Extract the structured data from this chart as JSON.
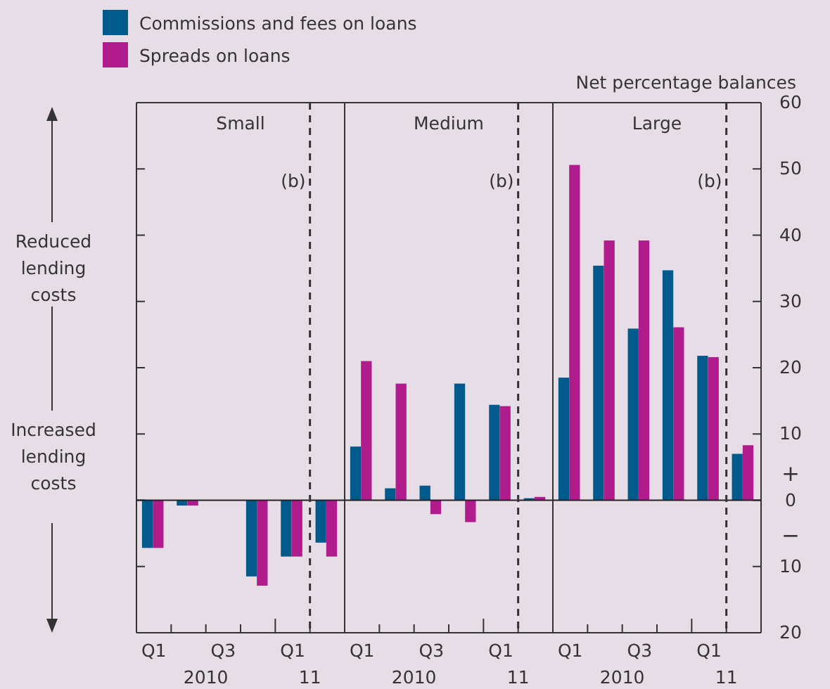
{
  "chart_data": [
    {
      "type": "bar",
      "title": "Small",
      "categories": [
        "Q1",
        null,
        "Q3",
        null,
        "Q1",
        null
      ],
      "ylim": [
        -20,
        60
      ],
      "yticks": [
        {
          "value": -20,
          "label": null
        },
        {
          "value": -10,
          "label": null
        },
        {
          "value": 0,
          "label": null
        },
        {
          "value": 10,
          "label": null
        },
        {
          "value": 20,
          "label": null
        },
        {
          "value": 30,
          "label": null
        },
        {
          "value": 40,
          "label": null
        },
        {
          "value": 50,
          "label": null
        },
        {
          "value": 60,
          "label": null
        }
      ],
      "tick_labels": "x",
      "legend": "top",
      "series": [
        {
          "name": "Commissions and fees on loans",
          "color": "#005a8c",
          "values": [
            -7.2,
            -0.8,
            null,
            -11.5,
            -8.5,
            -6.4
          ]
        },
        {
          "name": "Spreads on loans",
          "color": "#b01c8c",
          "values": [
            -7.2,
            -0.8,
            null,
            -12.9,
            -8.5,
            -8.5
          ]
        }
      ],
      "annotations": [
        "2010",
        "11",
        "(b)",
        "Reduced lending costs",
        "Increased lending costs"
      ]
    },
    {
      "type": "bar",
      "title": "Medium",
      "categories": [
        "Q1",
        null,
        "Q3",
        null,
        "Q1",
        null
      ],
      "ylim": [
        -20,
        60
      ],
      "tick_labels": "x",
      "series": [
        {
          "color": "#005a8c",
          "values": [
            8.1,
            1.8,
            2.2,
            17.6,
            14.4,
            0.3
          ]
        },
        {
          "color": "#b01c8c",
          "values": [
            21,
            17.6,
            -2.1,
            -3.3,
            14.2,
            0.5
          ]
        }
      ],
      "annotations": [
        "2010",
        "11",
        "(b)"
      ]
    },
    {
      "type": "bar",
      "title": "Large",
      "ylabel": "Net percentage balances",
      "categories": [
        "Q1",
        null,
        "Q3",
        null,
        "Q1",
        null
      ],
      "ylim": [
        -20,
        60
      ],
      "yticks": [
        {
          "value": -20,
          "label": "20"
        },
        {
          "value": -10,
          "label": "10"
        },
        0,
        10,
        20,
        30,
        40,
        50,
        60
      ],
      "series": [
        {
          "color": "#005a8c",
          "values": [
            18.5,
            35.4,
            25.9,
            34.7,
            21.8,
            7
          ]
        },
        {
          "color": "#b01c8c",
          "values": [
            50.6,
            39.2,
            39.2,
            26.1,
            21.6,
            8.3
          ]
        }
      ],
      "annotations": [
        "2010",
        "11",
        "(b)",
        "+",
        "−"
      ]
    }
  ]
}
